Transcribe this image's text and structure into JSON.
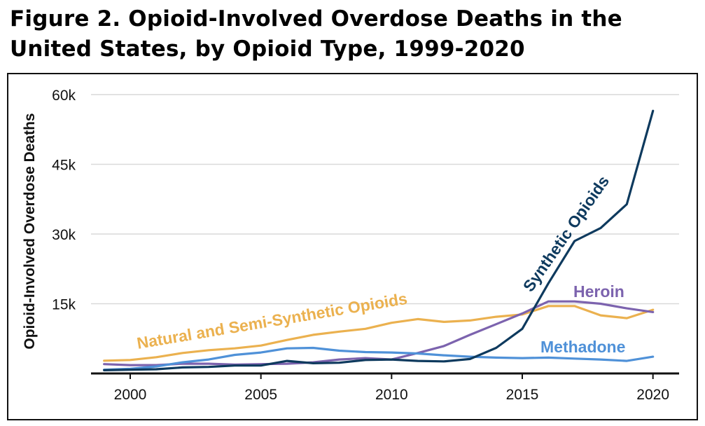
{
  "figure": {
    "title_line1": "Figure 2. Opioid-Involved Overdose Deaths in the",
    "title_line2": "United States, by Opioid Type, 1999-2020"
  },
  "chart_data": {
    "type": "line",
    "title": "Figure 2. Opioid-Involved Overdose Deaths in the United States, by Opioid Type, 1999-2020",
    "xlabel": "",
    "ylabel": "Opioid-Involved Overdose Deaths",
    "x": [
      1999,
      2000,
      2001,
      2002,
      2003,
      2004,
      2005,
      2006,
      2007,
      2008,
      2009,
      2010,
      2011,
      2012,
      2013,
      2014,
      2015,
      2016,
      2017,
      2018,
      2019,
      2020
    ],
    "xlim": [
      1998.5,
      2021
    ],
    "ylim": [
      0,
      60000
    ],
    "x_ticks": [
      2000,
      2005,
      2010,
      2015,
      2020
    ],
    "x_tick_labels": [
      "2000",
      "2005",
      "2010",
      "2015",
      "2020"
    ],
    "y_ticks": [
      15000,
      30000,
      45000,
      60000
    ],
    "y_tick_labels": [
      "15k",
      "30k",
      "45k",
      "60k"
    ],
    "grid": true,
    "series": [
      {
        "name": "Natural and Semi-Synthetic Opioids",
        "color": "#EBB14F",
        "values": [
          2750,
          2900,
          3500,
          4400,
          5000,
          5400,
          6000,
          7200,
          8300,
          9000,
          9600,
          10900,
          11700,
          11100,
          11400,
          12200,
          12700,
          14500,
          14500,
          12500,
          11900,
          13700
        ]
      },
      {
        "name": "Heroin",
        "color": "#7C63AE",
        "values": [
          2000,
          1800,
          1800,
          2100,
          2100,
          1900,
          2000,
          2100,
          2400,
          3000,
          3300,
          3000,
          4400,
          5900,
          8300,
          10600,
          12900,
          15500,
          15500,
          15000,
          14000,
          13200
        ]
      },
      {
        "name": "Methadone",
        "color": "#4F91D8",
        "values": [
          800,
          1000,
          1500,
          2400,
          3000,
          4000,
          4500,
          5400,
          5500,
          4900,
          4600,
          4500,
          4300,
          3900,
          3600,
          3400,
          3300,
          3400,
          3200,
          3000,
          2700,
          3600
        ]
      },
      {
        "name": "Synthetic Opioids",
        "color": "#0E3A5E",
        "values": [
          700,
          800,
          900,
          1300,
          1400,
          1700,
          1700,
          2700,
          2200,
          2300,
          2900,
          3000,
          2700,
          2600,
          3100,
          5500,
          9600,
          19400,
          28500,
          31300,
          36400,
          56500
        ]
      }
    ],
    "annotations": [
      {
        "series": "Natural and Semi-Synthetic Opioids",
        "text": "Natural and Semi-Synthetic Opioids"
      },
      {
        "series": "Heroin",
        "text": "Heroin"
      },
      {
        "series": "Methadone",
        "text": "Methadone"
      },
      {
        "series": "Synthetic Opioids",
        "text": "Synthetic Opioids"
      }
    ]
  }
}
